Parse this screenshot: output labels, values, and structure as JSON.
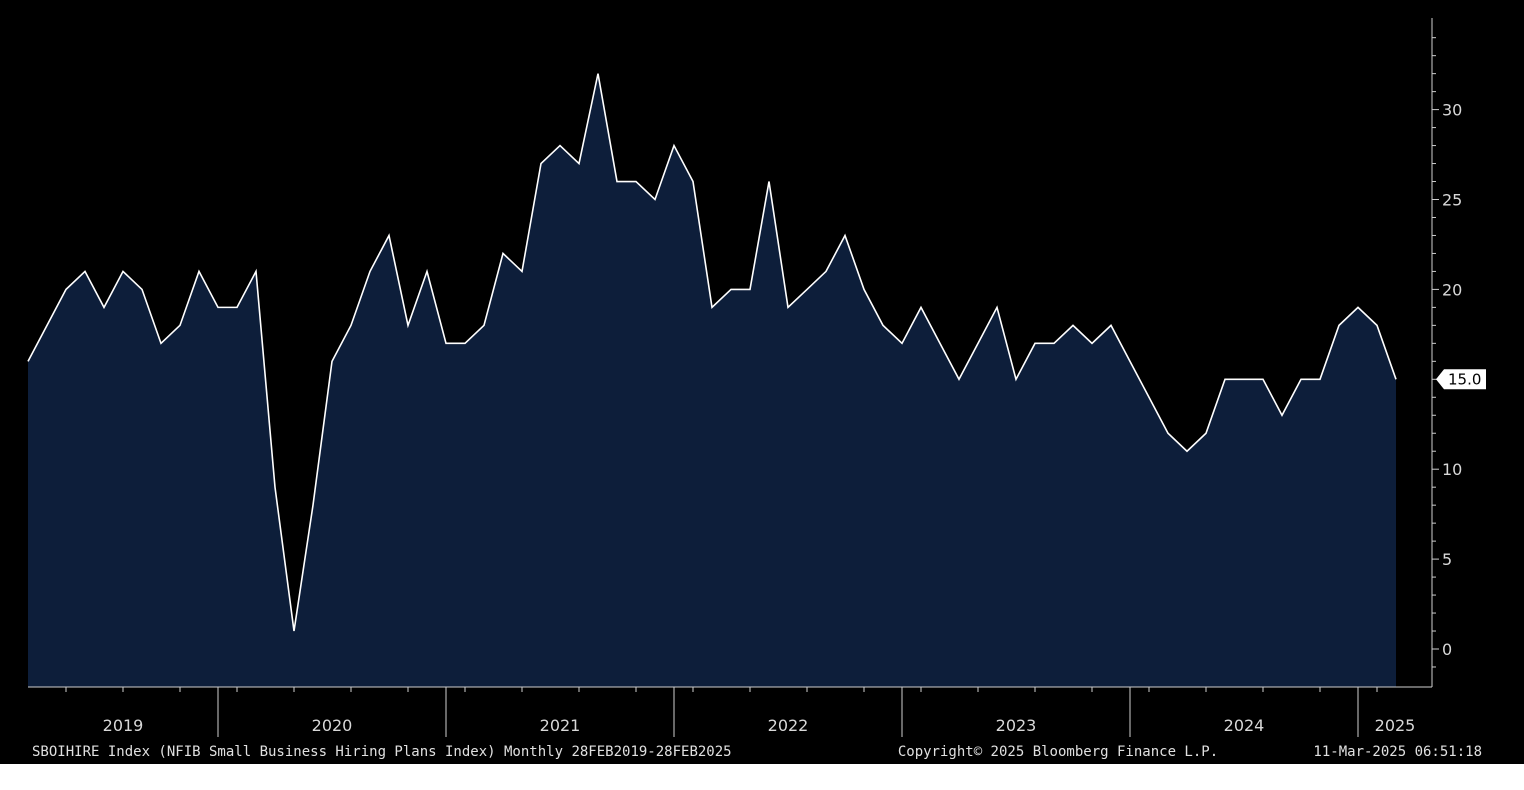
{
  "chart_data": {
    "type": "area",
    "series": [
      {
        "x_start": "2019-02",
        "x_end": "2025-02",
        "frequency": "monthly",
        "values": [
          16,
          18,
          20,
          21,
          19,
          21,
          20,
          17,
          18,
          21,
          19,
          19,
          21,
          9,
          1,
          8,
          16,
          18,
          21,
          23,
          18,
          21,
          17,
          17,
          18,
          22,
          21,
          27,
          28,
          27,
          32,
          26,
          26,
          25,
          28,
          26,
          19,
          20,
          20,
          26,
          19,
          20,
          21,
          23,
          20,
          18,
          17,
          19,
          17,
          15,
          17,
          19,
          15,
          17,
          17,
          18,
          17,
          18,
          16,
          14,
          12,
          11,
          12,
          15,
          15,
          15,
          13,
          15,
          15,
          18,
          19,
          18,
          15
        ]
      }
    ],
    "x_tick_labels": [
      "2019",
      "2020",
      "2021",
      "2022",
      "2023",
      "2024",
      "2025"
    ],
    "y_tick_labels": [
      "0",
      "5",
      "10",
      "15",
      "20",
      "25",
      "30"
    ],
    "ylim": [
      -2,
      35
    ],
    "last_value_label": "15.0",
    "grid": false,
    "colors": {
      "background": "#000000",
      "area_fill": "#0d1e3a",
      "line": "#ffffff",
      "axis": "#cfcfcf"
    }
  },
  "footer": {
    "left": "SBOIHIRE Index (NFIB Small Business Hiring Plans Index)  Monthly 28FEB2019-28FEB2025",
    "center": "Copyright© 2025 Bloomberg Finance L.P.",
    "right": "11-Mar-2025 06:51:18"
  }
}
